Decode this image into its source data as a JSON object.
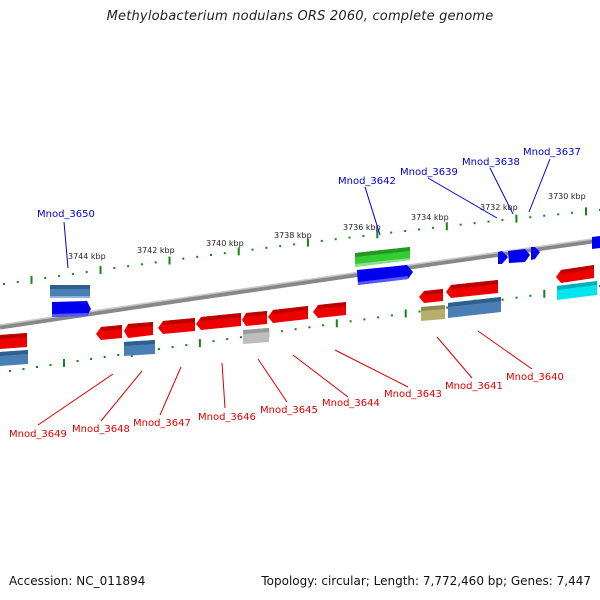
{
  "title": "Methylobacterium nodulans ORS 2060, complete genome",
  "footer": {
    "accession": "Accession: NC_011894",
    "summary": "Topology: circular; Length: 7,772,460 bp; Genes: 7,447"
  },
  "colors": {
    "forward_label": "#0000cc",
    "reverse_label": "#dd0000",
    "tick": "#118811",
    "backbone": "#808080"
  },
  "ticks": [
    {
      "label": "3744 kbp"
    },
    {
      "label": "3742 kbp"
    },
    {
      "label": "3740 kbp"
    },
    {
      "label": "3738 kbp"
    },
    {
      "label": "3736 kbp"
    },
    {
      "label": "3734 kbp"
    },
    {
      "label": "3732 kbp"
    },
    {
      "label": "3730 kbp"
    }
  ],
  "forward_genes": [
    {
      "label": "Mnod_3650"
    },
    {
      "label": "Mnod_3642"
    },
    {
      "label": "Mnod_3639"
    },
    {
      "label": "Mnod_3638"
    },
    {
      "label": "Mnod_3637"
    }
  ],
  "reverse_genes": [
    {
      "label": "Mnod_3649"
    },
    {
      "label": "Mnod_3648"
    },
    {
      "label": "Mnod_3647"
    },
    {
      "label": "Mnod_3646"
    },
    {
      "label": "Mnod_3645"
    },
    {
      "label": "Mnod_3644"
    },
    {
      "label": "Mnod_3643"
    },
    {
      "label": "Mnod_3641"
    },
    {
      "label": "Mnod_3640"
    }
  ]
}
